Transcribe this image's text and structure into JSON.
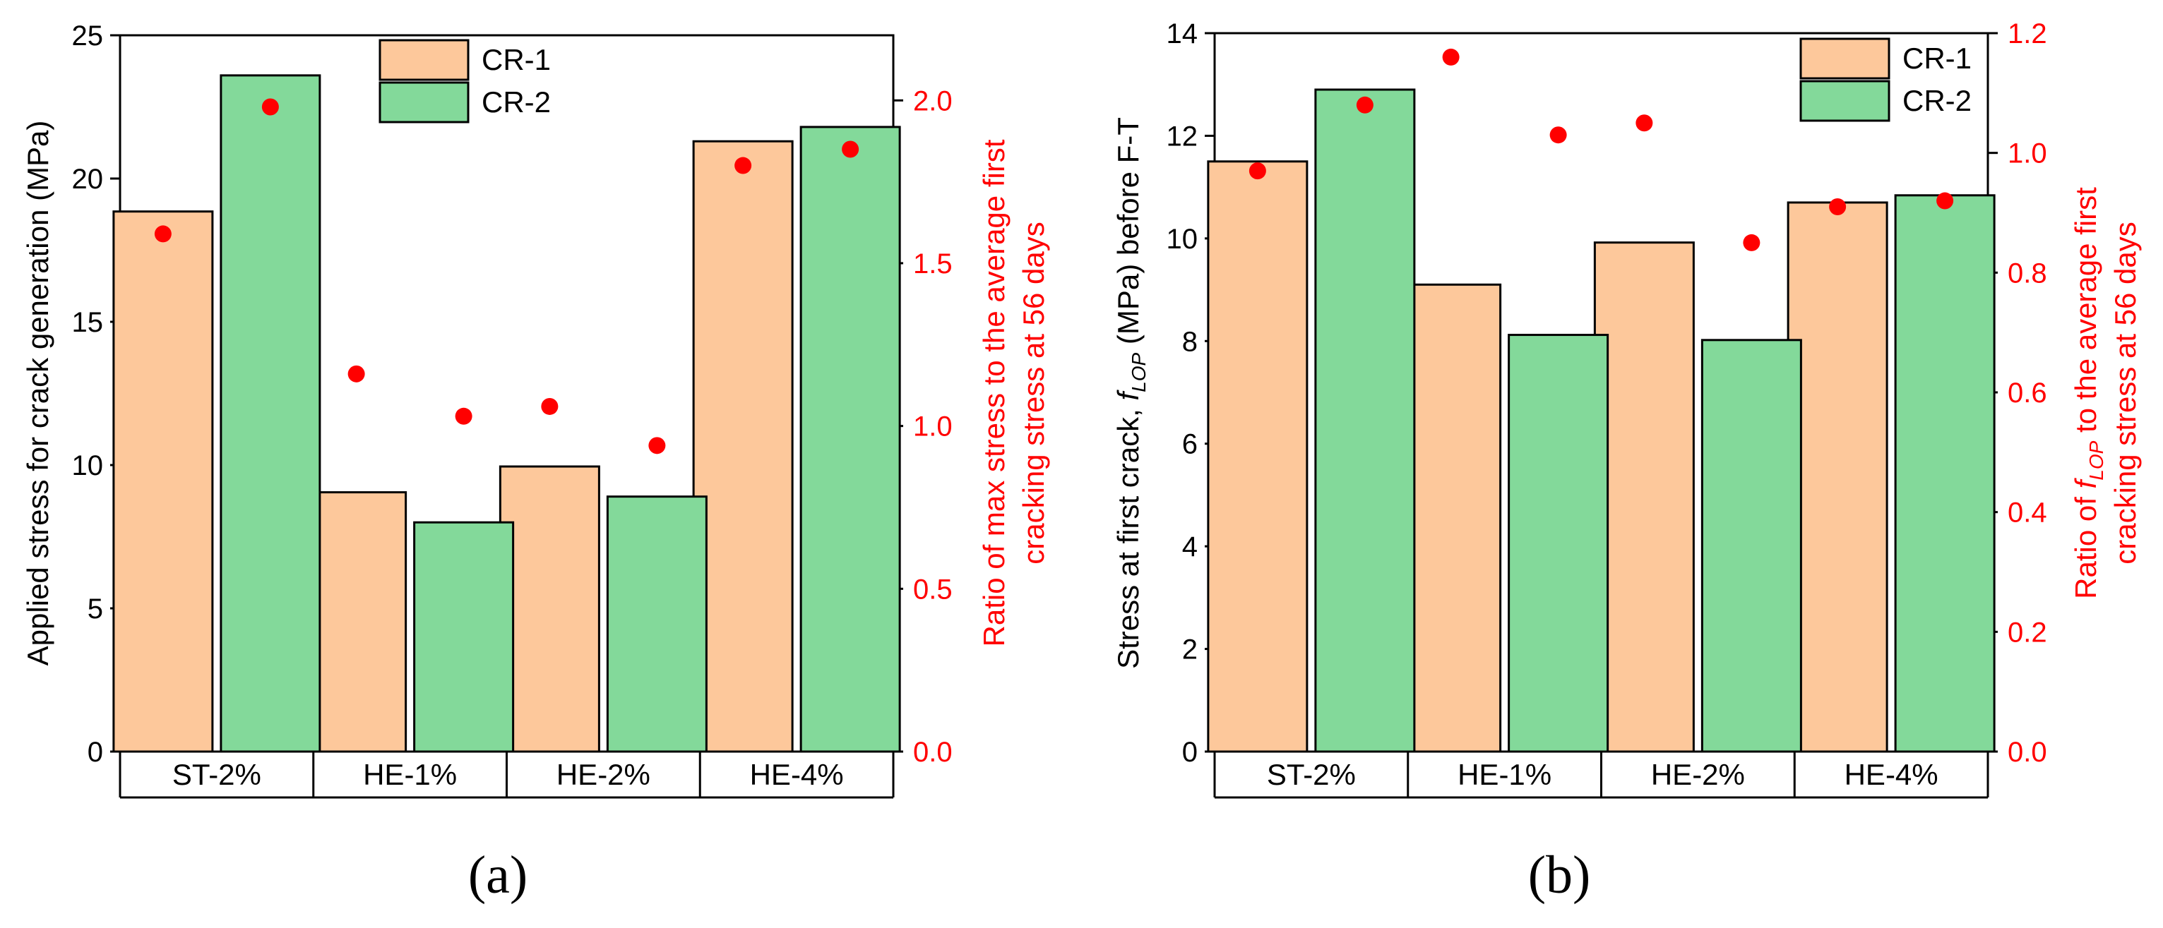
{
  "colors": {
    "cr1": "#fdc89b",
    "cr2": "#83d99a",
    "ratio": "#ff0000",
    "axis_left": "#000000",
    "axis_right": "#ff0000"
  },
  "chart_data": [
    {
      "type": "bar",
      "panel_label": "(a)",
      "categories": [
        "ST-2%",
        "HE-1%",
        "HE-2%",
        "HE-4%"
      ],
      "series": [
        {
          "name": "CR-1",
          "values": [
            18.85,
            9.05,
            9.95,
            21.3
          ]
        },
        {
          "name": "CR-2",
          "values": [
            23.6,
            8.0,
            8.9,
            21.8
          ]
        }
      ],
      "ylabel": "Applied stress for crack generation (MPa)",
      "ylim": [
        0,
        25
      ],
      "yticks": [
        "0",
        "5",
        "10",
        "15",
        "20",
        "25"
      ],
      "secondary": {
        "type": "scatter",
        "ylabel_lines": [
          "Ratio of max stress to the average first",
          "cracking stress at 56 days"
        ],
        "ylim": [
          0.0,
          2.2
        ],
        "yticks": [
          "0.0",
          "0.5",
          "1.0",
          "1.5",
          "2.0"
        ],
        "cr1_values": [
          1.59,
          1.16,
          1.06,
          1.8
        ],
        "cr2_values": [
          1.98,
          1.03,
          0.94,
          1.85
        ]
      },
      "legend": [
        "CR-1",
        "CR-2"
      ]
    },
    {
      "type": "bar",
      "panel_label": "(b)",
      "categories": [
        "ST-2%",
        "HE-1%",
        "HE-2%",
        "HE-4%"
      ],
      "series": [
        {
          "name": "CR-1",
          "values": [
            11.5,
            9.1,
            9.92,
            10.7
          ]
        },
        {
          "name": "CR-2",
          "values": [
            12.9,
            8.12,
            8.02,
            10.84
          ]
        }
      ],
      "ylabel_parts": [
        "Stress at first crack, ",
        "f",
        "LOP",
        " (MPa) before F-T"
      ],
      "ylim": [
        0,
        14
      ],
      "yticks": [
        "0",
        "2",
        "4",
        "6",
        "8",
        "10",
        "12",
        "14"
      ],
      "secondary": {
        "type": "scatter",
        "ylabel_line1_parts": [
          "Ratio of ",
          "f",
          "LOP",
          " to the average first"
        ],
        "ylabel_line2": "cracking stress at 56 days",
        "ylim": [
          0.0,
          1.2
        ],
        "yticks": [
          "0.0",
          "0.2",
          "0.4",
          "0.6",
          "0.8",
          "1.0",
          "1.2"
        ],
        "cr1_values": [
          0.97,
          1.16,
          1.05,
          0.91
        ],
        "cr2_values": [
          1.08,
          1.03,
          0.85,
          0.92
        ]
      },
      "legend": [
        "CR-1",
        "CR-2"
      ]
    }
  ]
}
